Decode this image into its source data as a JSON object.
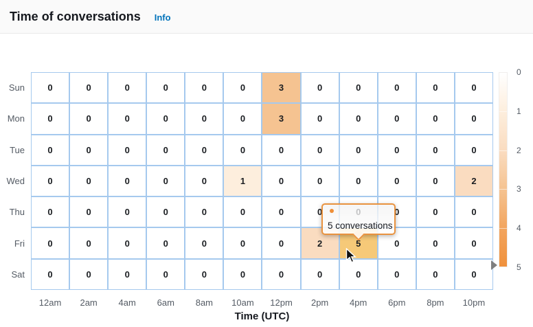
{
  "header": {
    "title": "Time of conversations",
    "info_label": "Info"
  },
  "chart_data": {
    "type": "heatmap",
    "title": "Time of conversations",
    "xlabel": "Time (UTC)",
    "x_categories": [
      "12am",
      "2am",
      "4am",
      "6am",
      "8am",
      "10am",
      "12pm",
      "2pm",
      "4pm",
      "6pm",
      "8pm",
      "10pm"
    ],
    "y_categories": [
      "Sun",
      "Mon",
      "Tue",
      "Wed",
      "Thu",
      "Fri",
      "Sat"
    ],
    "rows": [
      [
        0,
        0,
        0,
        0,
        0,
        0,
        3,
        0,
        0,
        0,
        0,
        0
      ],
      [
        0,
        0,
        0,
        0,
        0,
        0,
        3,
        0,
        0,
        0,
        0,
        0
      ],
      [
        0,
        0,
        0,
        0,
        0,
        0,
        0,
        0,
        0,
        0,
        0,
        0
      ],
      [
        0,
        0,
        0,
        0,
        0,
        1,
        0,
        0,
        0,
        0,
        0,
        2
      ],
      [
        0,
        0,
        0,
        0,
        0,
        0,
        0,
        0,
        0,
        0,
        0,
        0
      ],
      [
        0,
        0,
        0,
        0,
        0,
        0,
        0,
        2,
        5,
        0,
        0,
        0
      ],
      [
        0,
        0,
        0,
        0,
        0,
        0,
        0,
        0,
        0,
        0,
        0,
        0
      ]
    ],
    "legend": {
      "position": "right",
      "min": 0,
      "max": 5,
      "ticks": [
        "0",
        "1",
        "2",
        "3",
        "4",
        "5"
      ],
      "gradient_stops": [
        "#ffffff",
        "#fdeedd",
        "#fadcc0",
        "#f5c391",
        "#f2a55f",
        "#f0913c"
      ]
    },
    "value_colors": {
      "0": "#ffffff",
      "1": "#fdeedd",
      "2": "#fadcc0",
      "3": "#f5c391",
      "4": "#f3ab64",
      "5": "#f19b4a"
    },
    "hovered_cell": {
      "day": "Fri",
      "hour": "4pm",
      "row_index": 5,
      "col_index": 8,
      "value": 5,
      "highlight_color": "#f6c978"
    }
  },
  "tooltip": {
    "label": "5 conversations",
    "marker_color": "#ef8f38"
  },
  "colors": {
    "grid_border": "#a5c9ee",
    "header_bg": "#fafafa",
    "accent_orange": "#e9923e",
    "link_blue": "#0073bb",
    "label_gray": "#545b64",
    "value_text": "#16191f",
    "legend_pointer_gray": "#7f7f7f"
  }
}
